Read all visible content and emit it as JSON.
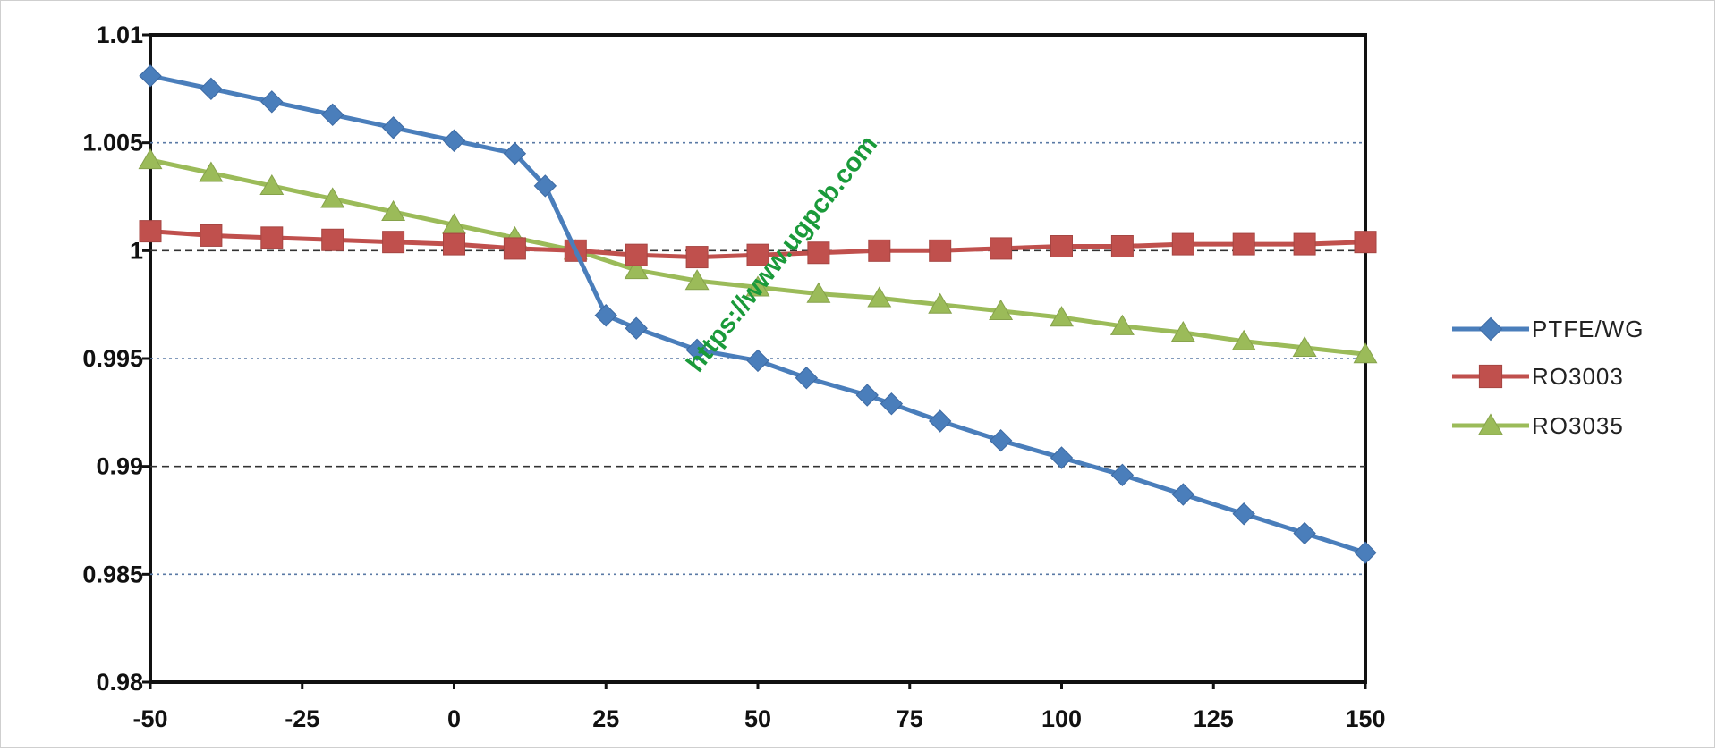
{
  "chart_data": {
    "type": "line",
    "title": "",
    "xlabel": "",
    "ylabel": "",
    "xlim": [
      -50,
      150
    ],
    "ylim": [
      0.98,
      1.01
    ],
    "x_ticks": [
      -50,
      -25,
      0,
      25,
      50,
      75,
      100,
      125,
      150
    ],
    "x_tick_labels": [
      "-50",
      "-25",
      "0",
      "25",
      "50",
      "75",
      "100",
      "125",
      "150"
    ],
    "y_ticks": [
      0.98,
      0.985,
      0.99,
      0.995,
      1,
      1.005,
      1.01
    ],
    "y_tick_labels": [
      "0.98",
      "0.985",
      "0.99",
      "0.995",
      "1",
      "1.005",
      "1.01"
    ],
    "grid": "horizontal dashed",
    "legend_position": "right",
    "series": [
      {
        "name": "PTFE/WG",
        "color": "#4a7ebb",
        "marker": "diamond",
        "points": [
          [
            -50,
            1.0081
          ],
          [
            -40,
            1.0075
          ],
          [
            -30,
            1.0069
          ],
          [
            -20,
            1.0063
          ],
          [
            -10,
            1.0057
          ],
          [
            0,
            1.0051
          ],
          [
            10,
            1.0045
          ],
          [
            15,
            1.003
          ],
          [
            25,
            0.997
          ],
          [
            30,
            0.9964
          ],
          [
            40,
            0.9954
          ],
          [
            50,
            0.9949
          ],
          [
            58,
            0.9941
          ],
          [
            68,
            0.9933
          ],
          [
            72,
            0.9929
          ],
          [
            80,
            0.9921
          ],
          [
            90,
            0.9912
          ],
          [
            100,
            0.9904
          ],
          [
            110,
            0.9896
          ],
          [
            120,
            0.9887
          ],
          [
            130,
            0.9878
          ],
          [
            140,
            0.9869
          ],
          [
            150,
            0.986
          ]
        ]
      },
      {
        "name": "RO3003",
        "color": "#c0504d",
        "marker": "square",
        "points": [
          [
            -50,
            1.0009
          ],
          [
            -40,
            1.0007
          ],
          [
            -30,
            1.0006
          ],
          [
            -20,
            1.0005
          ],
          [
            -10,
            1.0004
          ],
          [
            0,
            1.0003
          ],
          [
            10,
            1.0001
          ],
          [
            20,
            1.0
          ],
          [
            30,
            0.9998
          ],
          [
            40,
            0.9997
          ],
          [
            50,
            0.9998
          ],
          [
            60,
            0.9999
          ],
          [
            70,
            1.0
          ],
          [
            80,
            1.0
          ],
          [
            90,
            1.0001
          ],
          [
            100,
            1.0002
          ],
          [
            110,
            1.0002
          ],
          [
            120,
            1.0003
          ],
          [
            130,
            1.0003
          ],
          [
            140,
            1.0003
          ],
          [
            150,
            1.0004
          ]
        ]
      },
      {
        "name": "RO3035",
        "color": "#9bbb59",
        "marker": "triangle",
        "points": [
          [
            -50,
            1.0042
          ],
          [
            -40,
            1.0036
          ],
          [
            -30,
            1.003
          ],
          [
            -20,
            1.0024
          ],
          [
            -10,
            1.0018
          ],
          [
            0,
            1.0012
          ],
          [
            10,
            1.0006
          ],
          [
            20,
            1.0
          ],
          [
            30,
            0.9991
          ],
          [
            40,
            0.9986
          ],
          [
            50,
            0.9983
          ],
          [
            60,
            0.998
          ],
          [
            70,
            0.9978
          ],
          [
            80,
            0.9975
          ],
          [
            90,
            0.9972
          ],
          [
            100,
            0.9969
          ],
          [
            110,
            0.9965
          ],
          [
            120,
            0.9962
          ],
          [
            130,
            0.9958
          ],
          [
            140,
            0.9955
          ],
          [
            150,
            0.9952
          ]
        ]
      }
    ]
  },
  "watermark": {
    "text": "https://www.ugpcb.com",
    "color": "#1a9a3a"
  }
}
